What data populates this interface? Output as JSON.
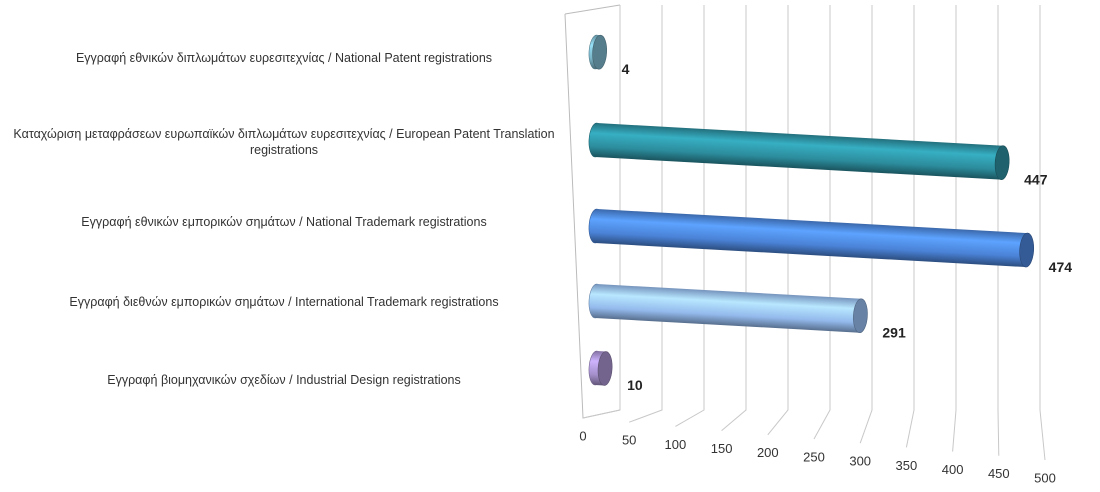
{
  "chart_data": {
    "type": "bar3d",
    "categories": [
      "Εγγραφή  εθνικών διπλωμάτων ευρεσιτεχνίας / National Patent registrations",
      "Καταχώριση μεταφράσεων ευρωπαϊκών διπλωμάτων ευρεσιτεχνίας / European Patent Translation registrations",
      "Εγγραφή  εθνικών εμπορικών σημάτων / National Trademark registrations",
      "Εγγραφή  διεθνών εμπορικών σημάτων / International Trademark registrations",
      "Εγγραφή  βιομηχανικών σχεδίων / Industrial Design registrations"
    ],
    "values": [
      4,
      447,
      474,
      291,
      10
    ],
    "colors": [
      "#79b3c6",
      "#2c8c9c",
      "#4a82d6",
      "#93b9ec",
      "#a48fca"
    ],
    "xlim": [
      0,
      500
    ],
    "xticks": [
      0,
      50,
      100,
      150,
      200,
      250,
      300,
      350,
      400,
      450,
      500
    ],
    "grid": true
  }
}
